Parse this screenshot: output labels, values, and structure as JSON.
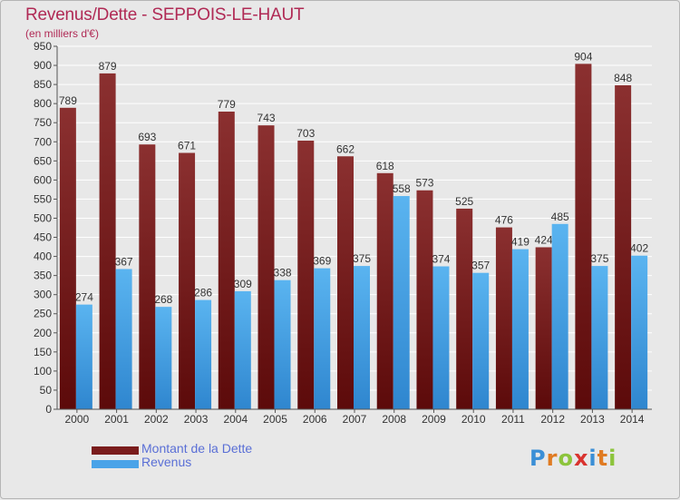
{
  "title": "Revenus/Dette - SEPPOIS-LE-HAUT",
  "subtitle": "(en milliers d'€)",
  "legend": [
    {
      "label": "Montant de la Dette",
      "color": "#7a1c1c"
    },
    {
      "label": "Revenus",
      "color": "#4aa3e8"
    }
  ],
  "logo": {
    "letters": [
      "P",
      "r",
      "o",
      "x",
      "i",
      "t",
      "i"
    ],
    "colors": [
      "#3b8fd6",
      "#e07b22",
      "#8cc43c",
      "#d9332f",
      "#3b8fd6",
      "#e07b22",
      "#8cc43c"
    ]
  },
  "chart_data": {
    "type": "bar",
    "categories": [
      "2000",
      "2001",
      "2002",
      "2003",
      "2004",
      "2005",
      "2006",
      "2007",
      "2008",
      "2009",
      "2010",
      "2011",
      "2012",
      "2013",
      "2014"
    ],
    "series": [
      {
        "name": "Montant de la Dette",
        "color": "#7a1c1c",
        "values": [
          789,
          879,
          693,
          671,
          779,
          743,
          703,
          662,
          618,
          573,
          525,
          476,
          424,
          904,
          848
        ]
      },
      {
        "name": "Revenus",
        "color": "#4aa3e8",
        "values": [
          274,
          367,
          268,
          286,
          309,
          338,
          369,
          375,
          558,
          374,
          357,
          419,
          485,
          375,
          402
        ]
      }
    ],
    "ylim": [
      0,
      950
    ],
    "ytick_step": 50,
    "grid": true,
    "data_labels": true
  }
}
